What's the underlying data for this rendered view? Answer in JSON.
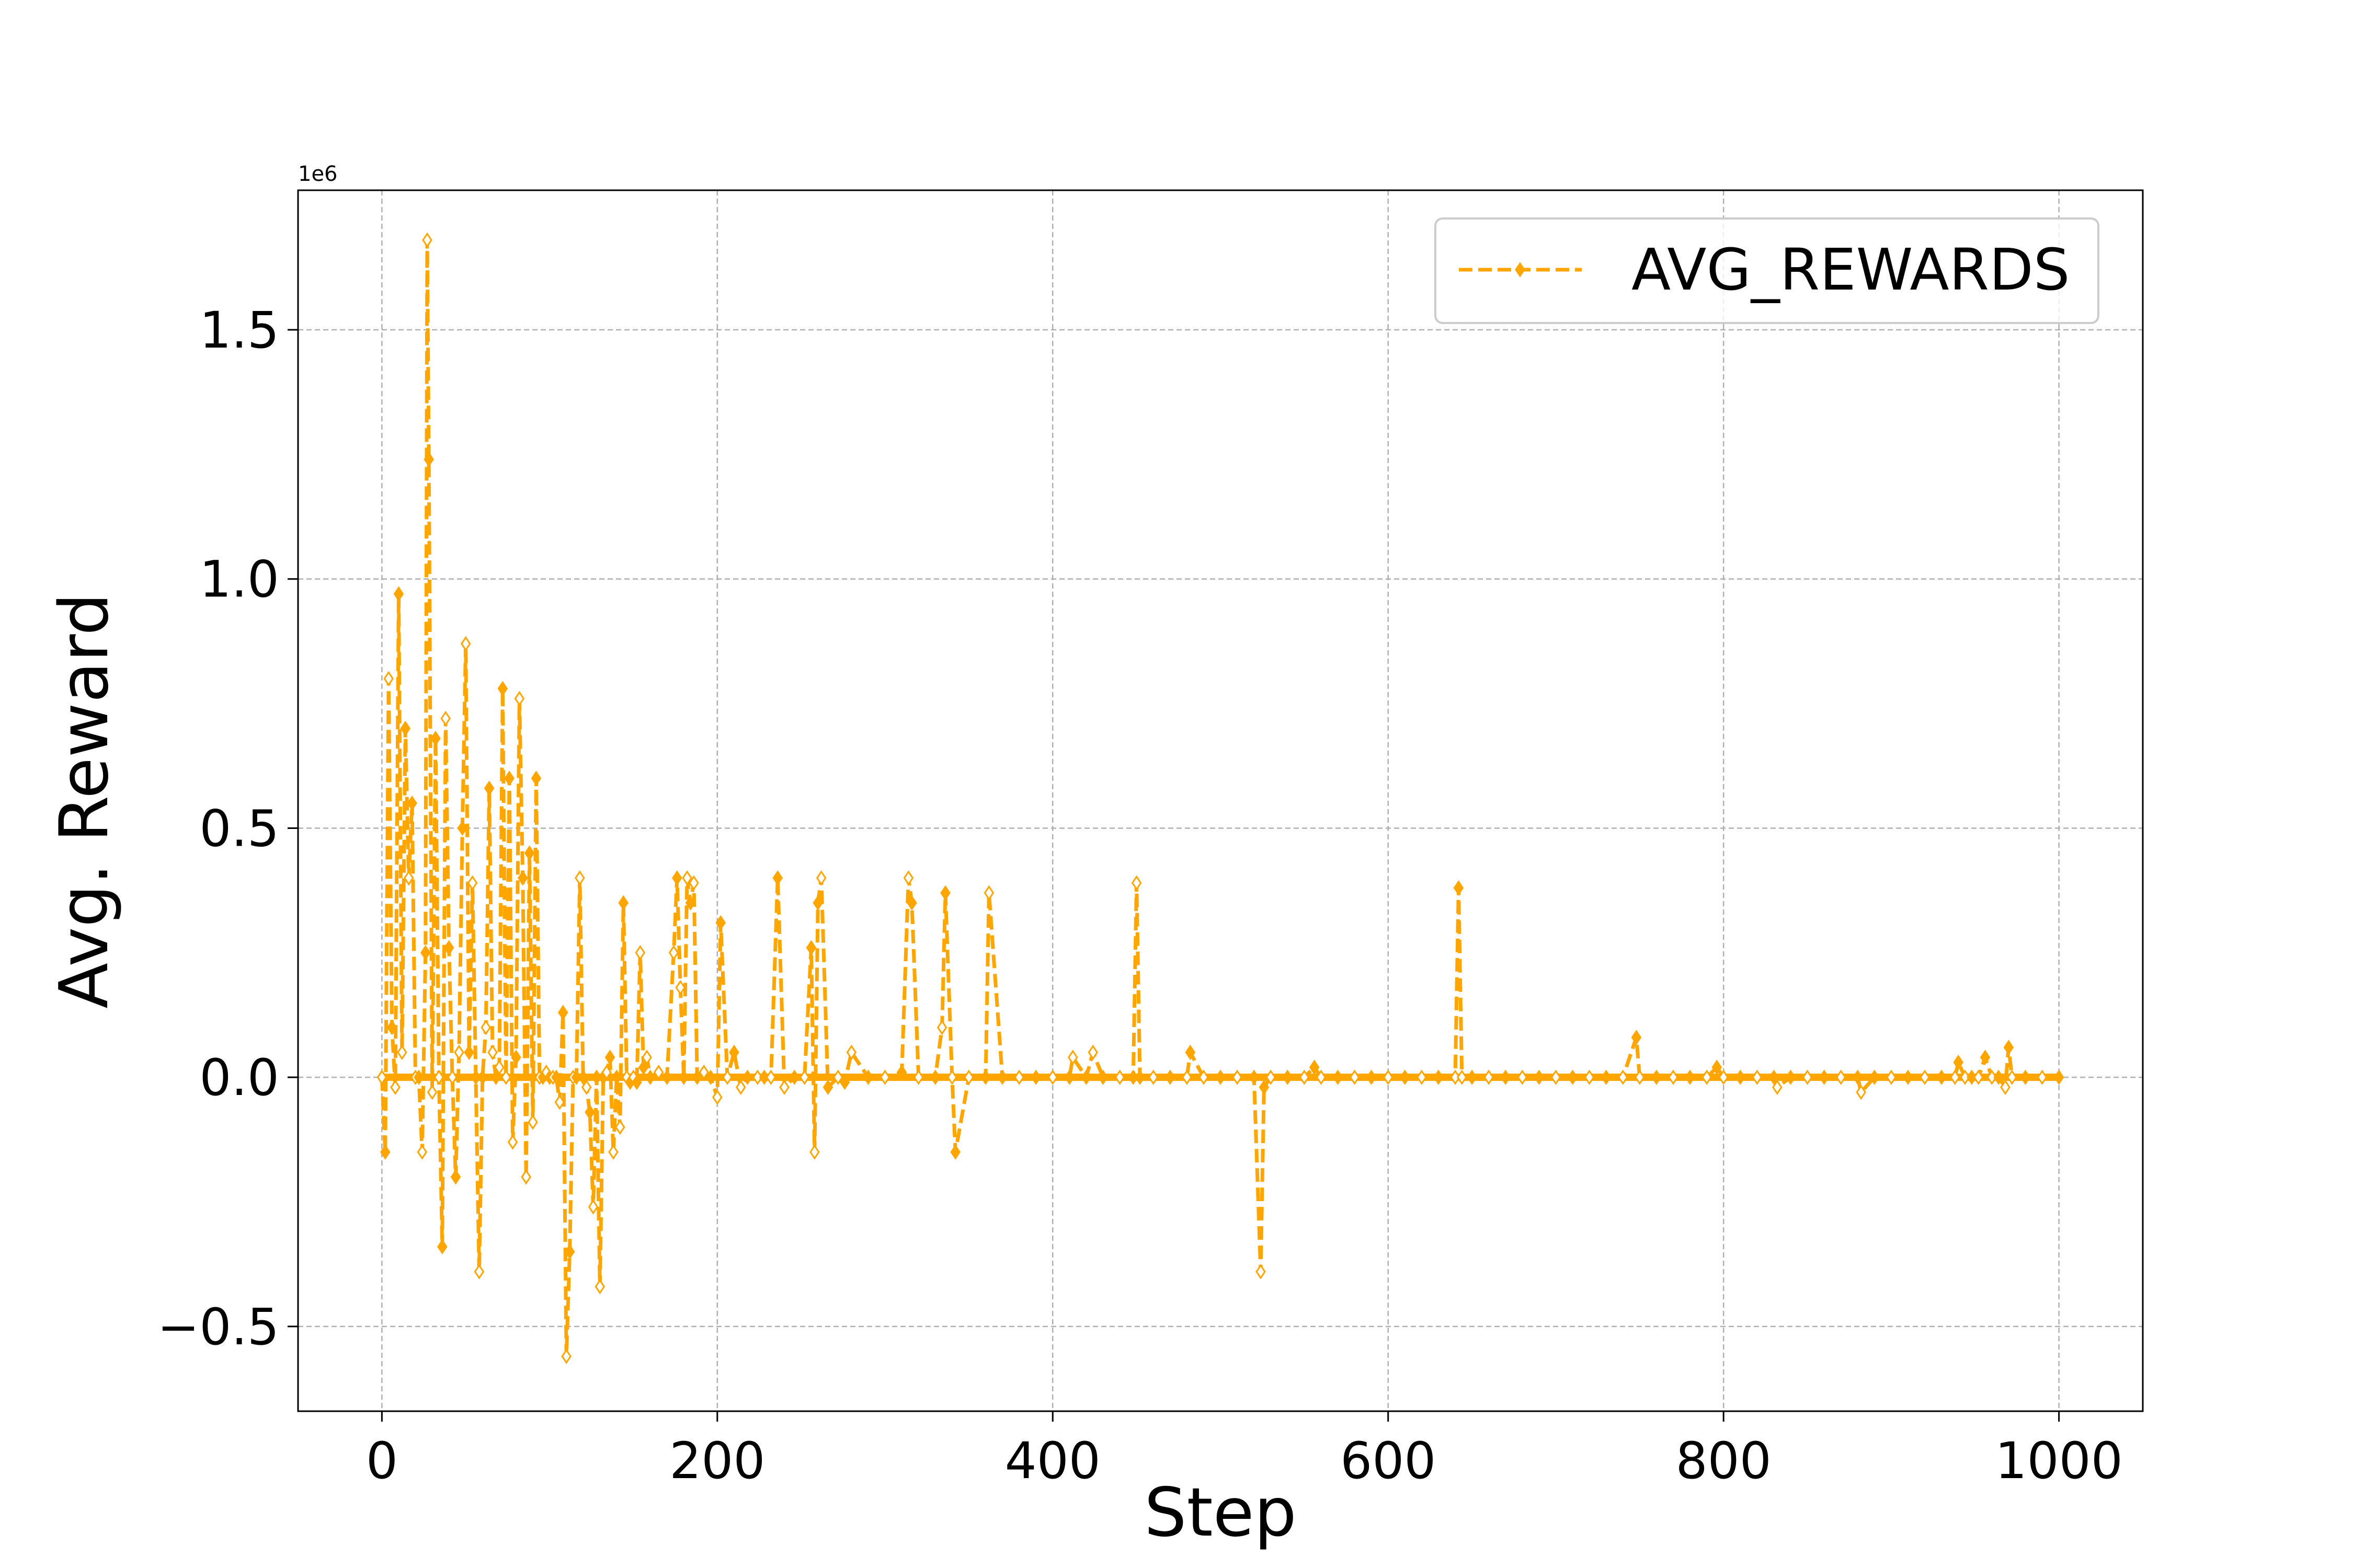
{
  "chart_data": {
    "type": "line",
    "xlabel": "Step",
    "ylabel": "Avg. Reward",
    "y_offset_label": "1e6",
    "xlim": [
      -50,
      1050
    ],
    "ylim": [
      -0.67,
      1.78
    ],
    "x_ticks": [
      0,
      200,
      400,
      600,
      800,
      1000
    ],
    "x_tick_labels": [
      "0",
      "200",
      "400",
      "600",
      "800",
      "1000"
    ],
    "y_ticks": [
      -0.5,
      0.0,
      0.5,
      1.0,
      1.5
    ],
    "y_tick_labels": [
      "−0.5",
      "0.0",
      "0.5",
      "1.0",
      "1.5"
    ],
    "grid": true,
    "legend_position": "top-right",
    "series": [
      {
        "name": "AVG_REWARDS",
        "color": "#FFA500",
        "line_style": "dashed",
        "marker": "thin-diamond",
        "x": [
          0,
          2,
          4,
          6,
          8,
          10,
          12,
          14,
          16,
          18,
          20,
          22,
          24,
          26,
          27,
          28,
          30,
          32,
          34,
          36,
          38,
          40,
          42,
          44,
          46,
          48,
          50,
          52,
          54,
          56,
          58,
          60,
          62,
          64,
          66,
          68,
          70,
          72,
          74,
          76,
          78,
          80,
          82,
          84,
          86,
          88,
          90,
          92,
          94,
          96,
          98,
          100,
          102,
          104,
          106,
          108,
          110,
          112,
          114,
          116,
          118,
          120,
          122,
          124,
          126,
          128,
          130,
          132,
          134,
          136,
          138,
          140,
          142,
          144,
          146,
          148,
          150,
          152,
          154,
          156,
          158,
          160,
          165,
          170,
          174,
          176,
          178,
          180,
          182,
          184,
          186,
          188,
          192,
          196,
          200,
          202,
          206,
          210,
          214,
          218,
          224,
          228,
          232,
          236,
          240,
          246,
          252,
          256,
          258,
          260,
          262,
          266,
          272,
          276,
          280,
          290,
          300,
          310,
          314,
          316,
          320,
          330,
          334,
          336,
          340,
          342,
          350,
          360,
          362,
          370,
          380,
          390,
          400,
          410,
          412,
          420,
          424,
          430,
          440,
          448,
          450,
          452,
          460,
          470,
          480,
          482,
          490,
          500,
          510,
          520,
          524,
          526,
          530,
          540,
          550,
          556,
          560,
          570,
          580,
          590,
          600,
          610,
          620,
          630,
          640,
          642,
          644,
          650,
          660,
          670,
          680,
          690,
          700,
          710,
          720,
          730,
          740,
          748,
          750,
          760,
          770,
          780,
          790,
          796,
          800,
          810,
          820,
          830,
          832,
          840,
          850,
          860,
          870,
          880,
          882,
          890,
          900,
          910,
          920,
          930,
          938,
          940,
          944,
          948,
          952,
          956,
          960,
          964,
          968,
          970,
          972,
          980,
          990,
          1000
        ],
        "y": [
          0.0,
          -0.15,
          0.8,
          0.1,
          -0.02,
          0.97,
          0.05,
          0.7,
          0.4,
          0.55,
          0.0,
          0.0,
          -0.15,
          0.25,
          1.68,
          1.24,
          -0.03,
          0.68,
          0.0,
          -0.34,
          0.72,
          0.26,
          0.0,
          -0.2,
          0.05,
          0.5,
          0.87,
          0.05,
          0.39,
          0.0,
          -0.39,
          0.0,
          0.1,
          0.58,
          0.05,
          0.0,
          0.02,
          0.78,
          0.0,
          0.6,
          -0.13,
          0.04,
          0.76,
          0.4,
          -0.2,
          0.45,
          -0.09,
          0.6,
          0.0,
          0.0,
          0.01,
          0.0,
          0.0,
          0.0,
          -0.05,
          0.13,
          -0.56,
          -0.35,
          0.0,
          0.0,
          0.4,
          0.0,
          -0.02,
          -0.07,
          -0.26,
          0.0,
          -0.42,
          0.0,
          0.01,
          0.04,
          -0.15,
          0.0,
          -0.1,
          0.35,
          0.0,
          -0.01,
          0.0,
          -0.01,
          0.25,
          0.02,
          0.04,
          0.0,
          0.01,
          0.0,
          0.25,
          0.4,
          0.18,
          0.0,
          0.4,
          0.35,
          0.39,
          0.0,
          0.01,
          0.0,
          -0.04,
          0.31,
          0.0,
          0.05,
          -0.02,
          0.0,
          0.0,
          0.0,
          0.0,
          0.4,
          -0.02,
          0.0,
          0.0,
          0.26,
          -0.15,
          0.35,
          0.4,
          -0.02,
          0.0,
          -0.01,
          0.05,
          0.0,
          0.0,
          0.01,
          0.4,
          0.35,
          0.0,
          0.0,
          0.1,
          0.37,
          0.0,
          -0.15,
          0.0,
          0.0,
          0.37,
          0.0,
          0.0,
          0.0,
          0.0,
          0.0,
          0.04,
          0.0,
          0.05,
          0.0,
          0.0,
          0.0,
          0.39,
          0.0,
          0.0,
          0.0,
          0.0,
          0.05,
          0.0,
          0.0,
          0.0,
          0.0,
          -0.39,
          -0.02,
          0.0,
          0.0,
          0.0,
          0.02,
          0.0,
          0.0,
          0.0,
          0.0,
          0.0,
          0.0,
          0.0,
          0.0,
          0.0,
          0.38,
          0.0,
          0.0,
          0.0,
          0.0,
          0.0,
          0.0,
          0.0,
          0.0,
          0.0,
          0.0,
          0.0,
          0.08,
          0.0,
          0.0,
          0.0,
          0.0,
          0.0,
          0.02,
          0.0,
          0.0,
          0.0,
          0.0,
          -0.02,
          0.0,
          0.0,
          0.0,
          0.0,
          0.0,
          -0.03,
          0.0,
          0.0,
          0.0,
          0.0,
          0.0,
          0.0,
          0.03,
          0.0,
          0.0,
          0.0,
          0.04,
          0.0,
          0.0,
          -0.02,
          0.06,
          0.0,
          0.0,
          0.0,
          0.0
        ]
      }
    ]
  }
}
